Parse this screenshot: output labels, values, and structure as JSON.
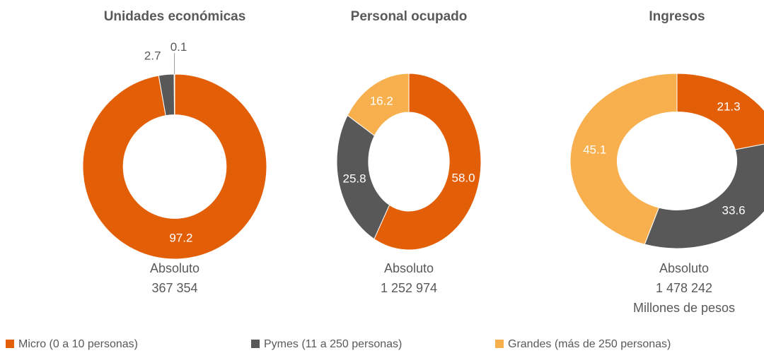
{
  "chart_data": [
    {
      "type": "donut",
      "title": "Unidades económicas",
      "values": [
        97.2,
        2.7,
        0.1
      ],
      "total_label": "Absoluto",
      "total": "367 354"
    },
    {
      "type": "donut",
      "title": "Personal ocupado",
      "values": [
        58.0,
        25.8,
        16.2
      ],
      "value_labels": [
        "58.0",
        "25.8",
        "16.2"
      ],
      "total_label": "Absoluto",
      "total": "1 252 974"
    },
    {
      "type": "donut",
      "title": "Ingresos",
      "values": [
        21.3,
        33.6,
        45.1
      ],
      "total_label": "Absoluto",
      "total": "1 478 242",
      "unit": "Millones de pesos"
    }
  ],
  "legend": {
    "categories": [
      "Micro (0 a 10 personas)",
      "Pymes (11 a 250 personas)",
      "Grandes (más de 250 personas)"
    ],
    "colors": [
      "#e35f07",
      "#585858",
      "#f8b04e"
    ]
  }
}
